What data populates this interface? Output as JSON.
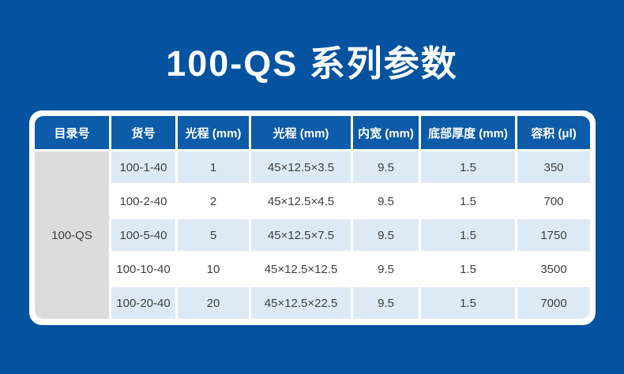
{
  "title": "100-QS 系列参数",
  "colors": {
    "background": "#0353a0",
    "header_bg": "#0d5ca9",
    "header_text": "#ffffff",
    "row_alt_bg": "#ddeaf6",
    "row_bg": "#ffffff",
    "catalog_cell_bg": "#dcdcdc",
    "table_border": "#ffffff",
    "body_text": "#3e3e3e"
  },
  "chart_data": {
    "type": "table",
    "title": "100-QS 系列参数",
    "columns": [
      "目录号",
      "货号",
      "光程 (mm)",
      "光程 (mm)",
      "内宽 (mm)",
      "底部厚度 (mm)",
      "容积 (μl)"
    ],
    "catalog_label": "100-QS",
    "rows": [
      {
        "sku": "100-1-40",
        "light_path": "1",
        "dimensions": "45×12.5×3.5",
        "inner_width": "9.5",
        "bottom_thickness": "1.5",
        "volume": "350"
      },
      {
        "sku": "100-2-40",
        "light_path": "2",
        "dimensions": "45×12.5×4.5",
        "inner_width": "9.5",
        "bottom_thickness": "1.5",
        "volume": "700"
      },
      {
        "sku": "100-5-40",
        "light_path": "5",
        "dimensions": "45×12.5×7.5",
        "inner_width": "9.5",
        "bottom_thickness": "1.5",
        "volume": "1750"
      },
      {
        "sku": "100-10-40",
        "light_path": "10",
        "dimensions": "45×12.5×12.5",
        "inner_width": "9.5",
        "bottom_thickness": "1.5",
        "volume": "3500"
      },
      {
        "sku": "100-20-40",
        "light_path": "20",
        "dimensions": "45×12.5×22.5",
        "inner_width": "9.5",
        "bottom_thickness": "1.5",
        "volume": "7000"
      }
    ]
  }
}
